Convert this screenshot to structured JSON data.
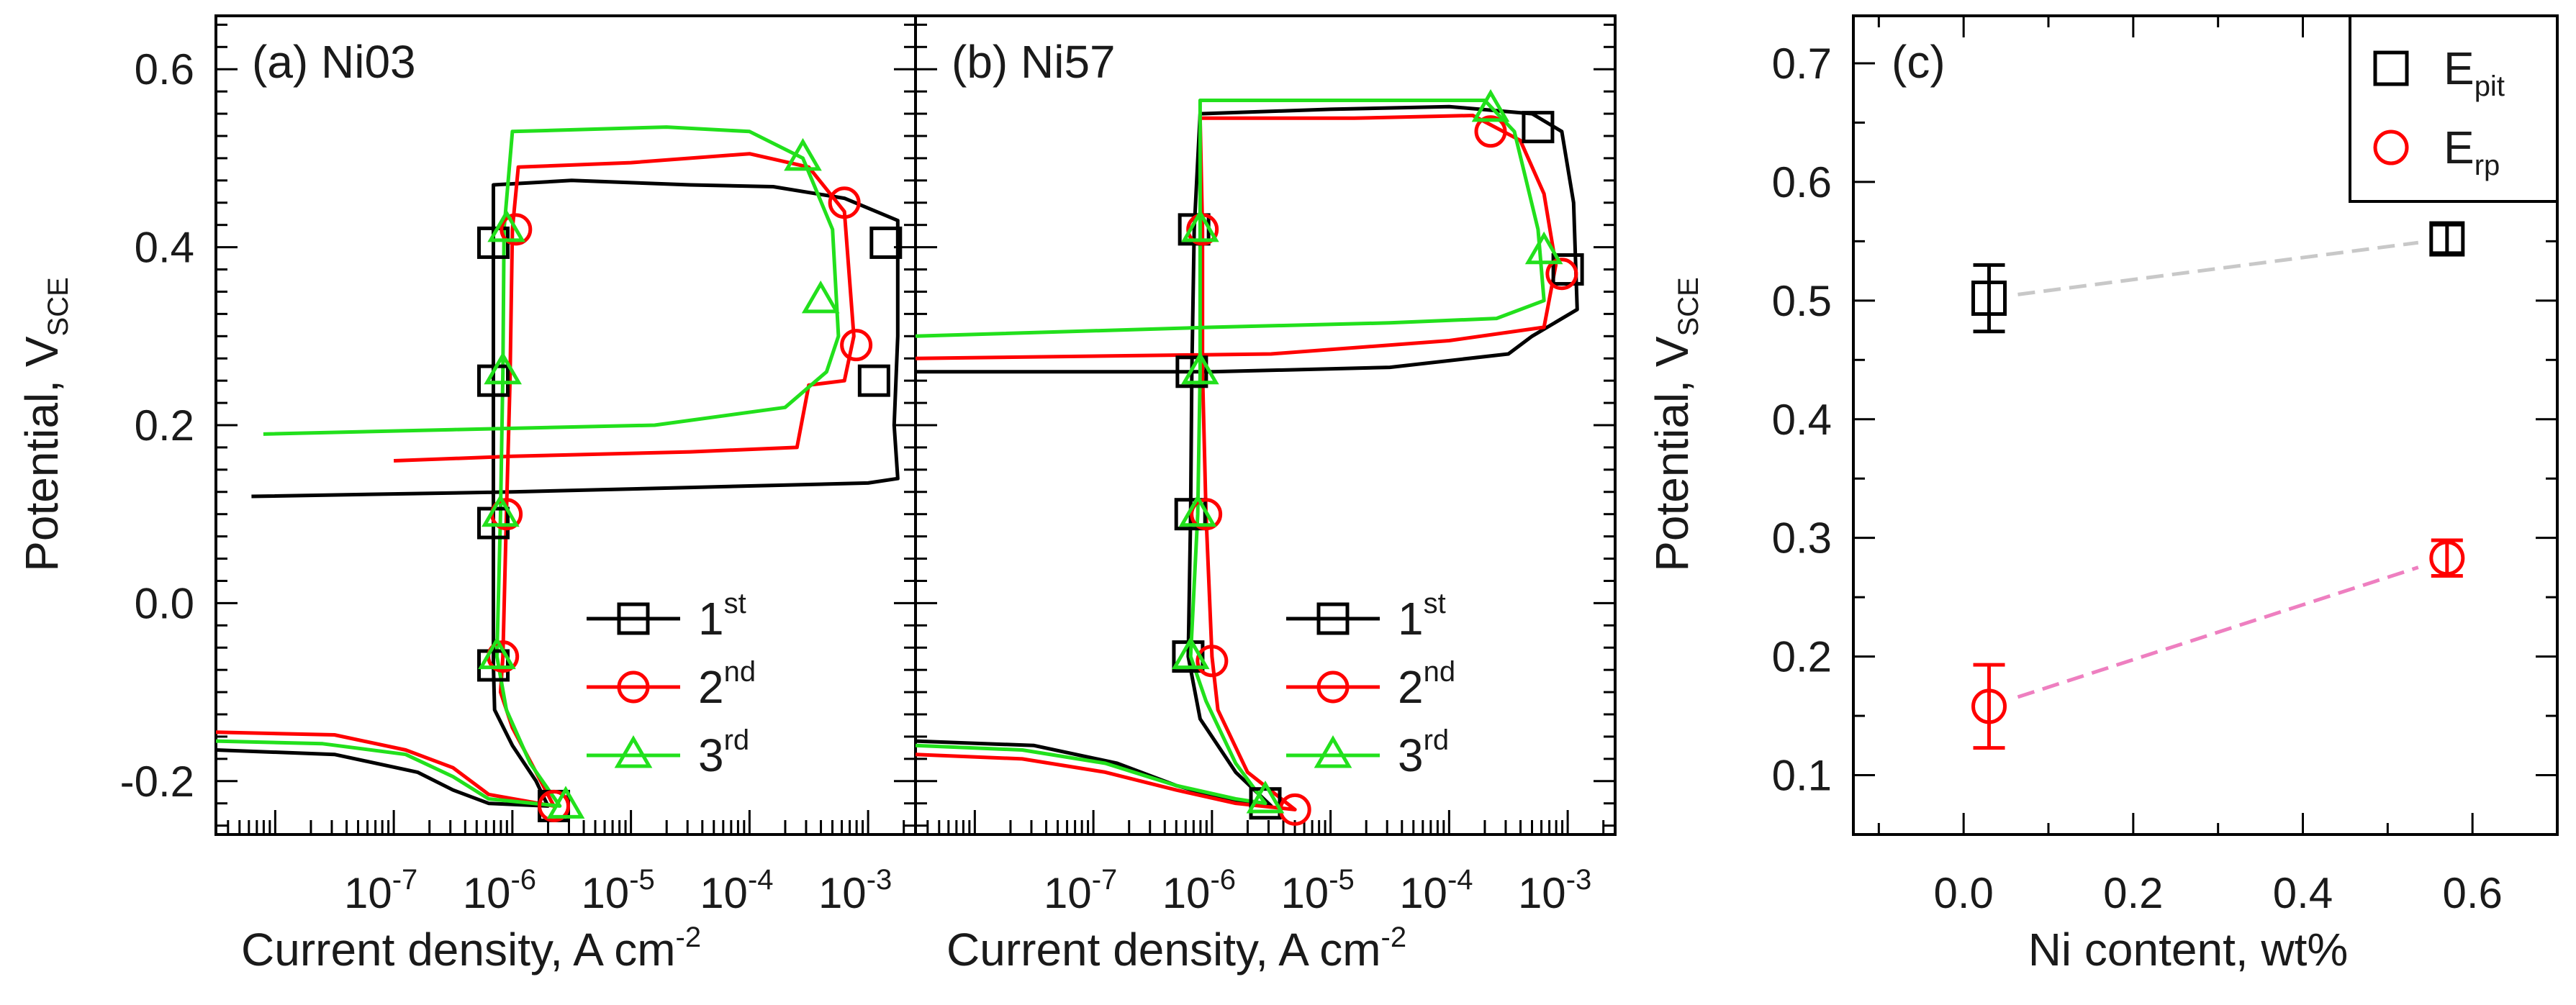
{
  "figure": {
    "colors": {
      "black": "#000000",
      "red": "#ff0000",
      "green": "#22e01c",
      "grey_dash": "#c8c8c8",
      "pink_dash": "#ee7fc0"
    }
  },
  "chart_data": [
    {
      "panel": "a",
      "type": "line",
      "title": "(a) Ni03",
      "xlabel": "Current density, A cm",
      "xlabel_exp": "-2",
      "ylabel": "Potential, V",
      "ylabel_sub": "SCE",
      "xscale": "log",
      "xlim_log10": [
        -8.5,
        -2.6
      ],
      "ylim": [
        -0.26,
        0.66
      ],
      "yticks": [
        -0.2,
        0.0,
        0.2,
        0.4,
        0.6
      ],
      "ytick_labels": [
        "-0.2",
        "0.0",
        "0.2",
        "0.4",
        "0.6"
      ],
      "xticks_log10": [
        -7,
        -6,
        -5,
        -4,
        -3
      ],
      "xtick_base": "10",
      "xtick_exps": [
        "-7",
        "-6",
        "-5",
        "-4",
        "-3"
      ],
      "legend": [
        {
          "base": "1",
          "sup": "st",
          "color": "#000000",
          "marker": "square"
        },
        {
          "base": "2",
          "sup": "nd",
          "color": "#ff0000",
          "marker": "circle"
        },
        {
          "base": "3",
          "sup": "rd",
          "color": "#22e01c",
          "marker": "triangle"
        }
      ],
      "series": [
        {
          "name": "1st",
          "color": "#000000",
          "marker": "square",
          "points": [
            [
              -8.5,
              -0.165
            ],
            [
              -7.5,
              -0.17
            ],
            [
              -6.8,
              -0.19
            ],
            [
              -6.5,
              -0.21
            ],
            [
              -6.2,
              -0.225
            ],
            [
              -5.7,
              -0.228
            ],
            [
              -5.8,
              -0.2
            ],
            [
              -6.0,
              -0.16
            ],
            [
              -6.15,
              -0.12
            ],
            [
              -6.16,
              -0.07
            ],
            [
              -6.16,
              0.09
            ],
            [
              -6.16,
              0.25
            ],
            [
              -6.16,
              0.405
            ],
            [
              -6.16,
              0.47
            ],
            [
              -5.5,
              0.475
            ],
            [
              -4.5,
              0.47
            ],
            [
              -3.8,
              0.468
            ],
            [
              -3.2,
              0.455
            ],
            [
              -2.75,
              0.43
            ],
            [
              -2.75,
              0.3
            ],
            [
              -2.78,
              0.2
            ],
            [
              -2.75,
              0.14
            ],
            [
              -3.0,
              0.135
            ],
            [
              -4.5,
              0.13
            ],
            [
              -6.0,
              0.125
            ],
            [
              -8.2,
              0.12
            ]
          ],
          "markers": [
            [
              -6.16,
              0.405
            ],
            [
              -6.16,
              0.25
            ],
            [
              -6.16,
              0.09
            ],
            [
              -6.16,
              -0.07
            ],
            [
              -5.65,
              -0.228
            ],
            [
              -2.85,
              0.405
            ],
            [
              -2.95,
              0.25
            ]
          ]
        },
        {
          "name": "2nd",
          "color": "#ff0000",
          "marker": "circle",
          "points": [
            [
              -8.5,
              -0.145
            ],
            [
              -7.5,
              -0.148
            ],
            [
              -6.9,
              -0.165
            ],
            [
              -6.5,
              -0.185
            ],
            [
              -6.2,
              -0.215
            ],
            [
              -5.65,
              -0.228
            ],
            [
              -5.8,
              -0.19
            ],
            [
              -6.0,
              -0.14
            ],
            [
              -6.1,
              -0.1
            ],
            [
              -6.08,
              -0.06
            ],
            [
              -6.05,
              0.1
            ],
            [
              -6.02,
              0.25
            ],
            [
              -6.0,
              0.42
            ],
            [
              -5.95,
              0.49
            ],
            [
              -5.0,
              0.495
            ],
            [
              -4.0,
              0.505
            ],
            [
              -3.5,
              0.49
            ],
            [
              -3.2,
              0.44
            ],
            [
              -3.12,
              0.3
            ],
            [
              -3.2,
              0.25
            ],
            [
              -3.5,
              0.245
            ],
            [
              -3.6,
              0.175
            ],
            [
              -4.5,
              0.17
            ],
            [
              -6.0,
              0.165
            ],
            [
              -7.0,
              0.16
            ]
          ],
          "markers": [
            [
              -5.97,
              0.42
            ],
            [
              -6.05,
              0.1
            ],
            [
              -6.08,
              -0.06
            ],
            [
              -5.65,
              -0.228
            ],
            [
              -3.2,
              0.45
            ],
            [
              -3.1,
              0.29
            ]
          ]
        },
        {
          "name": "3rd",
          "color": "#22e01c",
          "marker": "triangle",
          "points": [
            [
              -8.5,
              -0.155
            ],
            [
              -7.6,
              -0.158
            ],
            [
              -6.9,
              -0.17
            ],
            [
              -6.5,
              -0.195
            ],
            [
              -6.2,
              -0.22
            ],
            [
              -5.6,
              -0.228
            ],
            [
              -5.85,
              -0.18
            ],
            [
              -6.05,
              -0.12
            ],
            [
              -6.13,
              -0.06
            ],
            [
              -6.1,
              0.1
            ],
            [
              -6.08,
              0.26
            ],
            [
              -6.07,
              0.42
            ],
            [
              -6.0,
              0.53
            ],
            [
              -4.7,
              0.535
            ],
            [
              -4.0,
              0.53
            ],
            [
              -3.55,
              0.5
            ],
            [
              -3.3,
              0.42
            ],
            [
              -3.25,
              0.3
            ],
            [
              -3.35,
              0.26
            ],
            [
              -3.7,
              0.22
            ],
            [
              -4.8,
              0.2
            ],
            [
              -6.5,
              0.195
            ],
            [
              -8.1,
              0.19
            ]
          ],
          "markers": [
            [
              -6.05,
              0.42
            ],
            [
              -6.08,
              0.26
            ],
            [
              -6.1,
              0.1
            ],
            [
              -6.13,
              -0.06
            ],
            [
              -5.55,
              -0.228
            ],
            [
              -3.55,
              0.5
            ],
            [
              -3.4,
              0.34
            ]
          ]
        }
      ]
    },
    {
      "panel": "b",
      "type": "line",
      "title": "(b) Ni57",
      "xlabel": "Current density, A cm",
      "xlabel_exp": "-2",
      "xscale": "log",
      "xlim_log10": [
        -8.5,
        -2.6
      ],
      "ylim": [
        -0.26,
        0.66
      ],
      "xticks_log10": [
        -7,
        -6,
        -5,
        -4,
        -3
      ],
      "xtick_base": "10",
      "xtick_exps": [
        "-7",
        "-6",
        "-5",
        "-4",
        "-3"
      ],
      "legend": [
        {
          "base": "1",
          "sup": "st",
          "color": "#000000",
          "marker": "square"
        },
        {
          "base": "2",
          "sup": "nd",
          "color": "#ff0000",
          "marker": "circle"
        },
        {
          "base": "3",
          "sup": "rd",
          "color": "#22e01c",
          "marker": "triangle"
        }
      ],
      "series": [
        {
          "name": "1st",
          "color": "#000000",
          "marker": "square",
          "points": [
            [
              -8.5,
              -0.155
            ],
            [
              -7.5,
              -0.16
            ],
            [
              -6.8,
              -0.18
            ],
            [
              -6.3,
              -0.205
            ],
            [
              -5.9,
              -0.22
            ],
            [
              -5.5,
              -0.228
            ],
            [
              -5.8,
              -0.19
            ],
            [
              -6.1,
              -0.13
            ],
            [
              -6.2,
              -0.06
            ],
            [
              -6.18,
              0.1
            ],
            [
              -6.17,
              0.26
            ],
            [
              -6.15,
              0.42
            ],
            [
              -6.1,
              0.55
            ],
            [
              -5.0,
              0.555
            ],
            [
              -4.0,
              0.558
            ],
            [
              -3.3,
              0.55
            ],
            [
              -3.05,
              0.53
            ],
            [
              -2.95,
              0.45
            ],
            [
              -2.92,
              0.33
            ],
            [
              -3.3,
              0.3
            ],
            [
              -3.5,
              0.28
            ],
            [
              -4.5,
              0.265
            ],
            [
              -6.0,
              0.26
            ],
            [
              -8.5,
              0.26
            ]
          ],
          "markers": [
            [
              -6.15,
              0.42
            ],
            [
              -6.17,
              0.26
            ],
            [
              -6.18,
              0.1
            ],
            [
              -6.2,
              -0.06
            ],
            [
              -5.55,
              -0.225
            ],
            [
              -3.25,
              0.535
            ],
            [
              -3.0,
              0.375
            ]
          ]
        },
        {
          "name": "2nd",
          "color": "#ff0000",
          "marker": "circle",
          "points": [
            [
              -8.5,
              -0.17
            ],
            [
              -7.6,
              -0.175
            ],
            [
              -6.9,
              -0.19
            ],
            [
              -6.3,
              -0.21
            ],
            [
              -5.8,
              -0.225
            ],
            [
              -5.3,
              -0.232
            ],
            [
              -5.7,
              -0.19
            ],
            [
              -5.95,
              -0.12
            ],
            [
              -6.0,
              -0.06
            ],
            [
              -6.05,
              0.1
            ],
            [
              -6.08,
              0.26
            ],
            [
              -6.08,
              0.42
            ],
            [
              -6.1,
              0.545
            ],
            [
              -4.8,
              0.545
            ],
            [
              -3.8,
              0.548
            ],
            [
              -3.4,
              0.52
            ],
            [
              -3.2,
              0.46
            ],
            [
              -3.1,
              0.38
            ],
            [
              -3.2,
              0.31
            ],
            [
              -4.0,
              0.295
            ],
            [
              -5.5,
              0.28
            ],
            [
              -8.5,
              0.275
            ]
          ],
          "markers": [
            [
              -6.08,
              0.42
            ],
            [
              -6.05,
              0.1
            ],
            [
              -6.0,
              -0.065
            ],
            [
              -5.3,
              -0.232
            ],
            [
              -3.65,
              0.53
            ],
            [
              -3.05,
              0.37
            ]
          ]
        },
        {
          "name": "3rd",
          "color": "#22e01c",
          "marker": "triangle",
          "points": [
            [
              -8.5,
              -0.16
            ],
            [
              -7.6,
              -0.165
            ],
            [
              -6.9,
              -0.18
            ],
            [
              -6.3,
              -0.205
            ],
            [
              -5.8,
              -0.22
            ],
            [
              -5.55,
              -0.225
            ],
            [
              -5.8,
              -0.18
            ],
            [
              -6.05,
              -0.11
            ],
            [
              -6.18,
              -0.06
            ],
            [
              -6.12,
              0.1
            ],
            [
              -6.1,
              0.26
            ],
            [
              -6.1,
              0.42
            ],
            [
              -6.1,
              0.565
            ],
            [
              -4.8,
              0.565
            ],
            [
              -3.7,
              0.565
            ],
            [
              -3.45,
              0.53
            ],
            [
              -3.25,
              0.42
            ],
            [
              -3.2,
              0.34
            ],
            [
              -3.6,
              0.32
            ],
            [
              -4.5,
              0.315
            ],
            [
              -6.0,
              0.31
            ],
            [
              -8.5,
              0.3
            ]
          ],
          "markers": [
            [
              -6.1,
              0.42
            ],
            [
              -6.1,
              0.26
            ],
            [
              -6.12,
              0.1
            ],
            [
              -6.18,
              -0.06
            ],
            [
              -5.55,
              -0.222
            ],
            [
              -3.65,
              0.555
            ],
            [
              -3.2,
              0.395
            ]
          ]
        }
      ]
    },
    {
      "panel": "c",
      "type": "scatter",
      "title": "(c)",
      "xlabel": "Ni content, wt%",
      "ylabel": "Potential, V",
      "ylabel_sub": "SCE",
      "xlim": [
        -0.13,
        0.7
      ],
      "ylim": [
        0.05,
        0.74
      ],
      "xticks": [
        0.0,
        0.2,
        0.4,
        0.6
      ],
      "xtick_labels": [
        "0.0",
        "0.2",
        "0.4",
        "0.6"
      ],
      "yticks": [
        0.1,
        0.2,
        0.3,
        0.4,
        0.5,
        0.6,
        0.7
      ],
      "ytick_labels": [
        "0.1",
        "0.2",
        "0.3",
        "0.4",
        "0.5",
        "0.6",
        "0.7"
      ],
      "legend_position": "top-right",
      "legend": [
        {
          "base": "E",
          "sub": "pit",
          "color": "#000000",
          "marker": "square"
        },
        {
          "base": "E",
          "sub": "rp",
          "color": "#ff0000",
          "marker": "circle"
        }
      ],
      "series": [
        {
          "name": "Epit",
          "color": "#000000",
          "marker": "square",
          "trend_color": "#c8c8c8",
          "x": [
            0.03,
            0.57
          ],
          "y": [
            0.502,
            0.552
          ],
          "err": [
            0.028,
            0.012
          ]
        },
        {
          "name": "Erp",
          "color": "#ff0000",
          "marker": "circle",
          "trend_color": "#ee7fc0",
          "x": [
            0.03,
            0.57
          ],
          "y": [
            0.158,
            0.283
          ],
          "err": [
            0.035,
            0.015
          ]
        }
      ]
    }
  ]
}
